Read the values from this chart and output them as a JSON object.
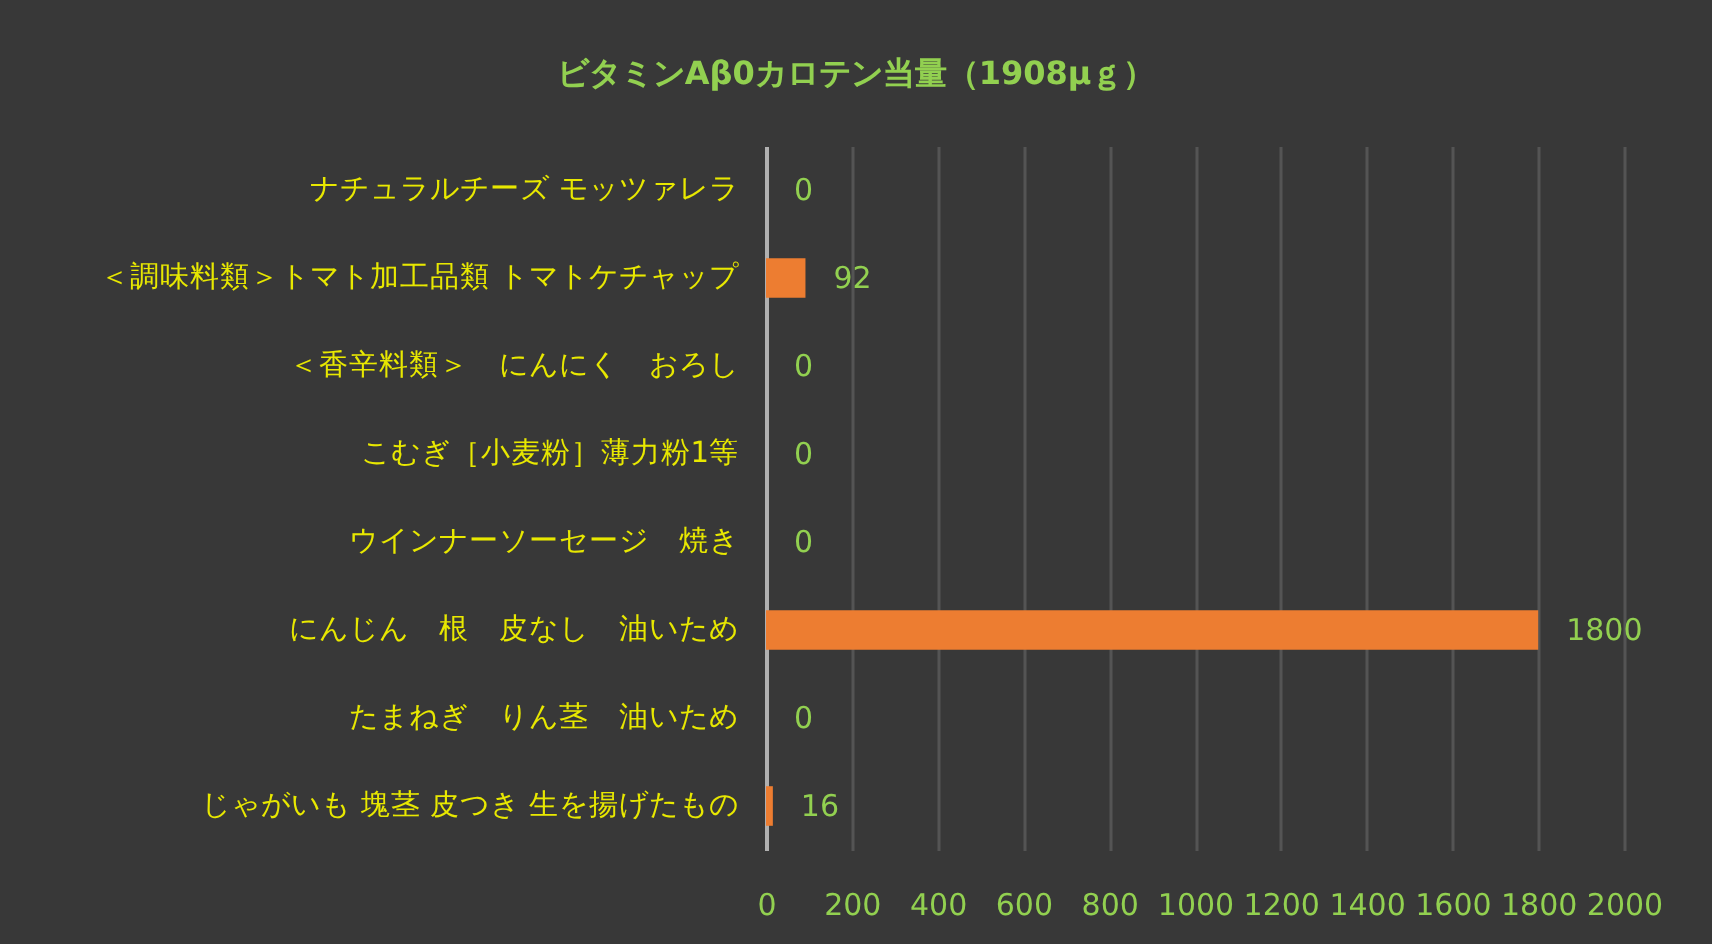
{
  "chart_data": {
    "type": "bar",
    "orientation": "horizontal",
    "title": "ビタミンAβ0カロテン当量（1908μｇ）",
    "categories": [
      "ナチュラルチーズ モッツァレラ",
      "＜調味料類＞トマト加工品類 トマトケチャップ",
      "＜香辛料類＞　にんにく　おろし",
      "こむぎ［小麦粉］薄力粉1等",
      "ウインナーソーセージ　焼き",
      "にんじん　根　皮なし　油いため",
      "たまねぎ　りん茎　油いため",
      "じゃがいも 塊茎 皮つき 生を揚げたもの"
    ],
    "values": [
      0,
      92,
      0,
      0,
      0,
      1800,
      0,
      16
    ],
    "color": "#ed7d31",
    "xlim": [
      0,
      2000
    ],
    "xticks": [
      0,
      200,
      400,
      600,
      800,
      1000,
      1200,
      1400,
      1600,
      1800,
      2000
    ],
    "grid": "x",
    "data_labels": true
  }
}
